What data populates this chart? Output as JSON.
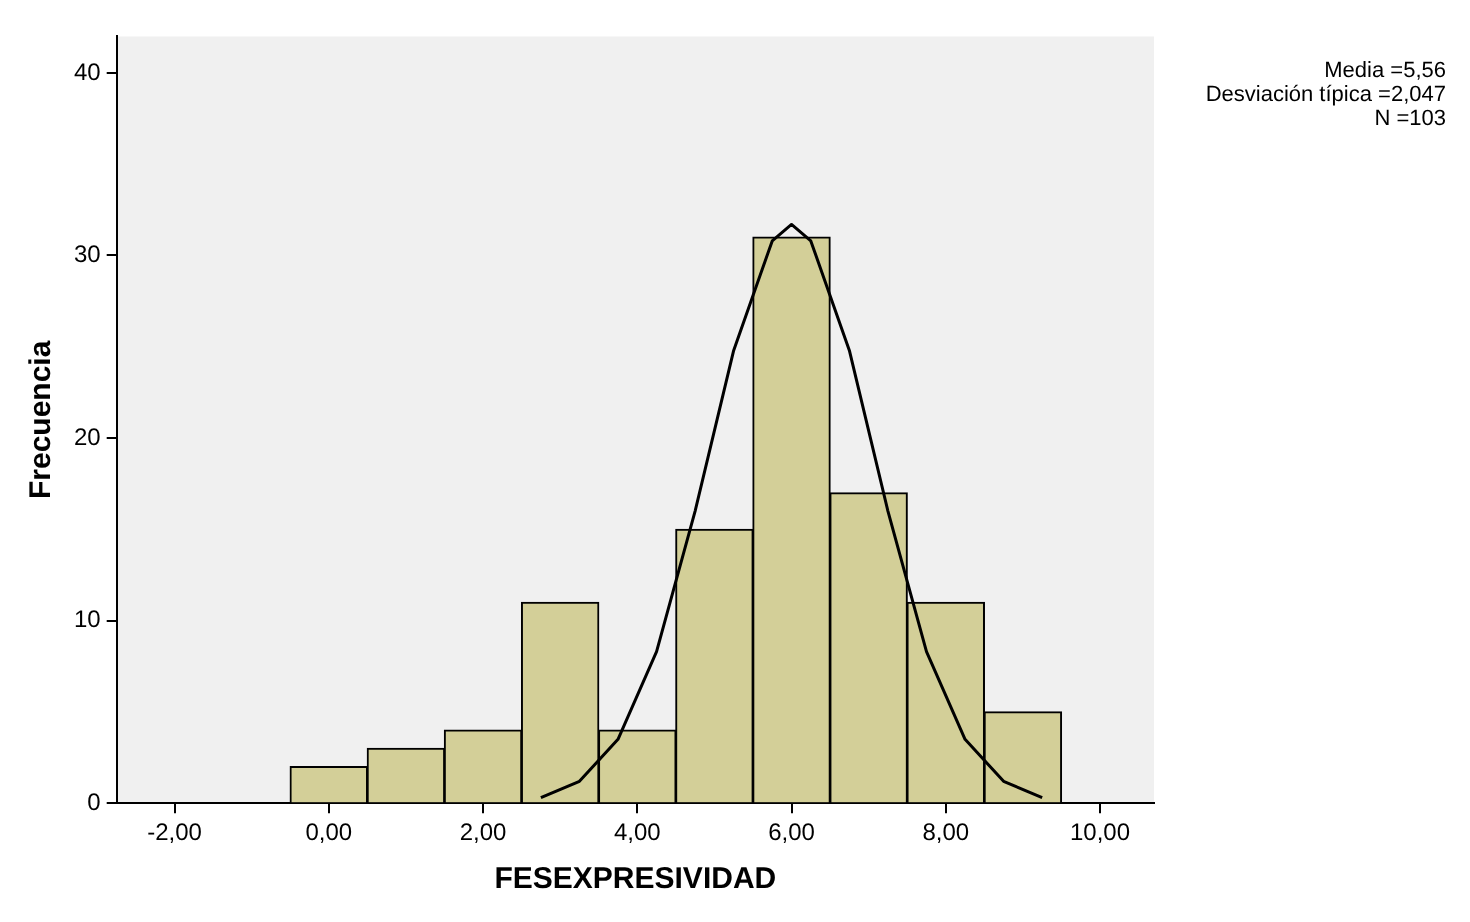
{
  "chart_data": {
    "type": "histogram",
    "xlabel": "FESEXPRESIVIDAD",
    "ylabel": "Frecuencia",
    "bins": [
      -0.5,
      0.5,
      1.5,
      2.5,
      3.5,
      4.5,
      5.5,
      6.5,
      7.5,
      8.5,
      9.5
    ],
    "values": [
      2,
      3,
      4,
      11,
      4,
      15,
      31,
      17,
      11,
      5
    ],
    "color": "#d3cf98",
    "series": [
      {
        "type": "line",
        "color": "#000000",
        "x": [
          2.75,
          3.25,
          3.75,
          4.25,
          4.75,
          5.25,
          5.75,
          6.0,
          6.25,
          6.75,
          7.25,
          7.75,
          8.25,
          8.75,
          9.25
        ],
        "values": [
          0.3,
          1.2,
          3.5,
          8.3,
          16.0,
          24.8,
          30.8,
          31.7,
          30.8,
          24.8,
          16.0,
          8.3,
          3.5,
          1.2,
          0.3
        ]
      }
    ],
    "xlim": [
      -2.75,
      10.7
    ],
    "xticks": [
      {
        "value": -2,
        "label": "-2,00"
      },
      {
        "value": 0,
        "label": "0,00"
      },
      {
        "value": 2,
        "label": "2,00"
      },
      {
        "value": 4,
        "label": "4,00"
      },
      {
        "value": 6,
        "label": "6,00"
      },
      {
        "value": 8,
        "label": "8,00"
      },
      {
        "value": 10,
        "label": "10,00"
      }
    ],
    "ylim": [
      0,
      42
    ],
    "yticks": [
      0,
      10,
      20,
      30,
      40
    ],
    "grid": false,
    "legend": false,
    "marker": "none",
    "annotations": [
      "Media =5,56",
      "Desviación típica =2,047",
      "N =103"
    ]
  }
}
